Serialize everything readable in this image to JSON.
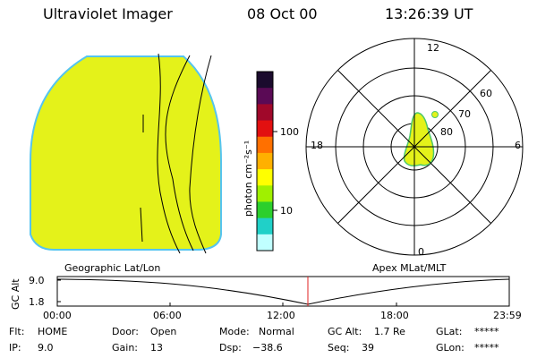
{
  "header": {
    "instrument": "Ultraviolet Imager",
    "date": "08 Oct 00",
    "time": "13:26:39 UT"
  },
  "colorbar": {
    "unit_label": "photon cm⁻²s⁻¹",
    "ticks": [
      "100",
      "10"
    ],
    "colors": [
      "#1b0b2d",
      "#5a0a55",
      "#a0082a",
      "#e21010",
      "#ff7000",
      "#ffb000",
      "#ffff00",
      "#a0f000",
      "#2ccf2c",
      "#20d0c8",
      "#c0ffff"
    ]
  },
  "earth_image": {
    "fill_color": "#e4f21a",
    "edge_color": "#55c4ef",
    "label": "Geographic Lat/Lon"
  },
  "polar_plot": {
    "label": "Apex MLat/MLT",
    "mlt_labels": {
      "top": "12",
      "left": "18",
      "right": "6",
      "bottom": "0"
    },
    "lat_labels": [
      "60",
      "70",
      "80"
    ],
    "oval_color": "#e4f21a",
    "oval_edge": "#4cc86a"
  },
  "altitude_plot": {
    "axis_label": "GC Alt",
    "y_ticks": [
      "9.0",
      "1.8"
    ],
    "x_ticks": [
      "00:00",
      "06:00",
      "12:00",
      "18:00",
      "23:59"
    ],
    "marker_color": "#e02020"
  },
  "status": {
    "flt_label": "Flt:",
    "flt_value": "HOME",
    "ip_label": "IP:",
    "ip_value": "9.0",
    "door_label": "Door:",
    "door_value": "Open",
    "gain_label": "Gain:",
    "gain_value": "13",
    "mode_label": "Mode:",
    "mode_value": "Normal",
    "dsp_label": "Dsp:",
    "dsp_value": "−38.6",
    "gcalt_label": "GC Alt:",
    "gcalt_value": "1.7 Re",
    "seq_label": "Seq:",
    "seq_value": "39",
    "glat_label": "GLat:",
    "glat_value": "*****",
    "glon_label": "GLon:",
    "glon_value": "*****"
  }
}
